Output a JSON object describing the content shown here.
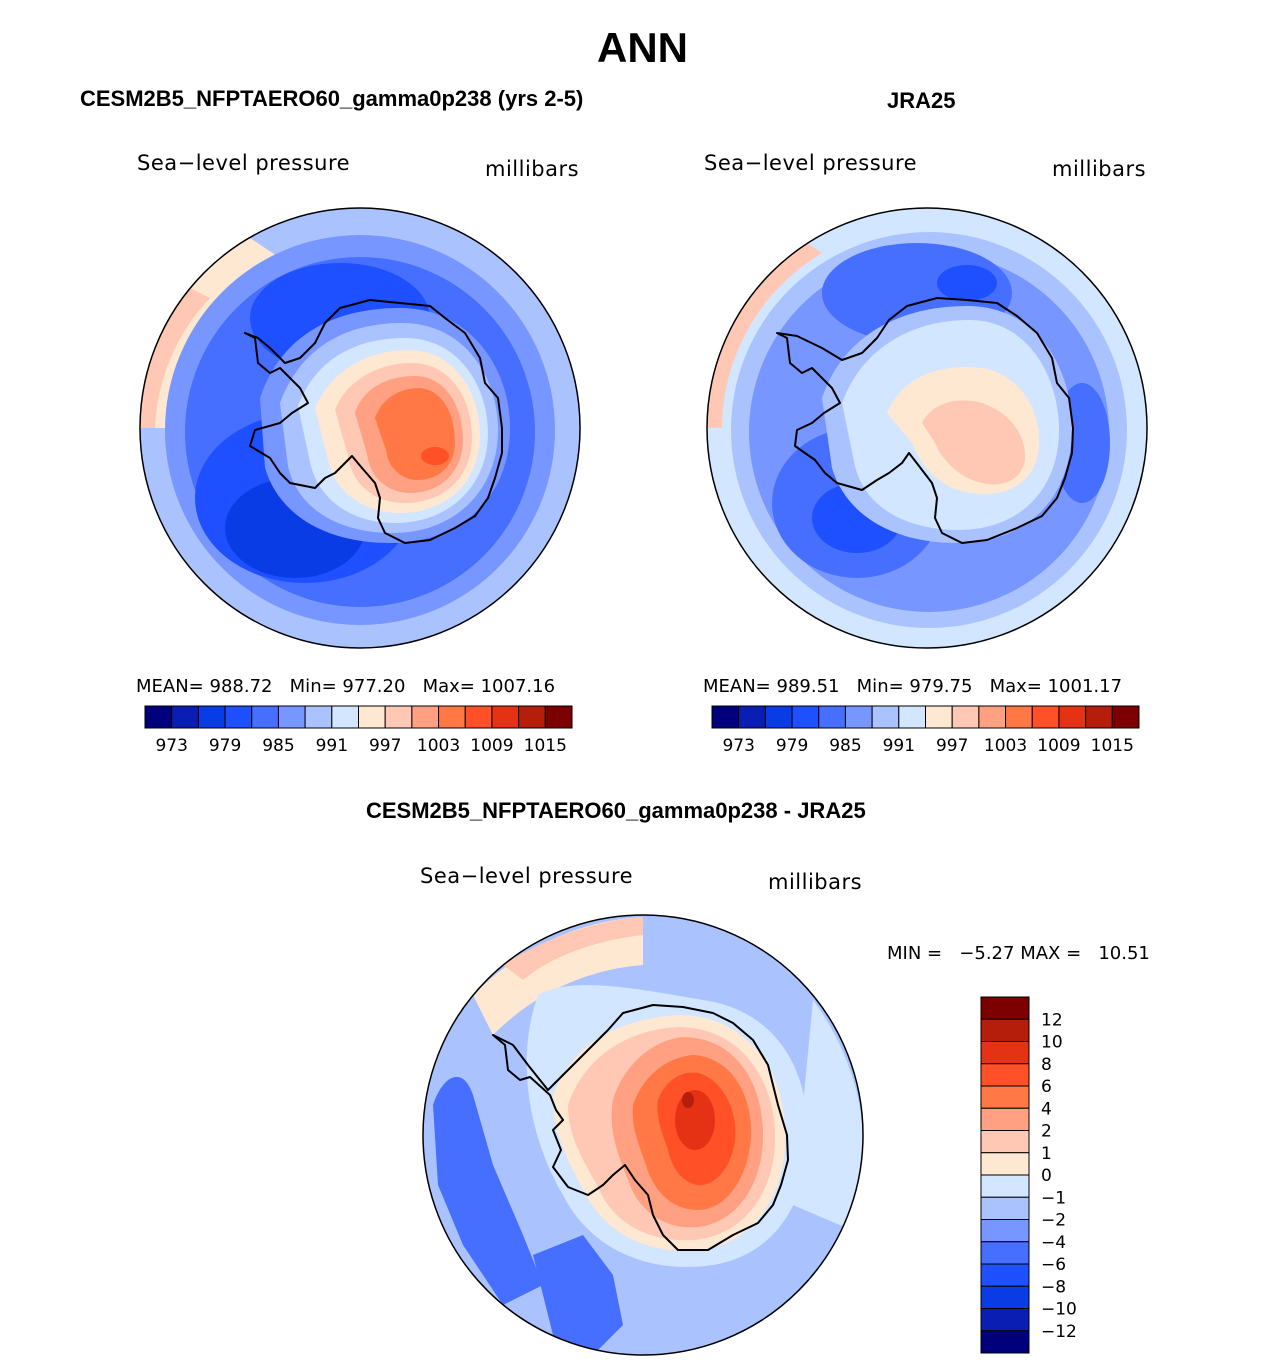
{
  "title": "ANN",
  "panels": {
    "model": {
      "title": "CESM2B5_NFPTAERO60_gamma0p238 (yrs 2-5)",
      "variable": "Sea−level pressure",
      "units": "millibars",
      "mean_label": "MEAN=",
      "mean": "988.72",
      "min_label": "Min=",
      "min": "977.20",
      "max_label": "Max=",
      "max": "1007.16"
    },
    "obs": {
      "title": "JRA25",
      "variable": "Sea−level pressure",
      "units": "millibars",
      "mean_label": "MEAN=",
      "mean": "989.51",
      "min_label": "Min=",
      "min": "979.75",
      "max_label": "Max=",
      "max": "1001.17"
    },
    "diff": {
      "title": "CESM2B5_NFPTAERO60_gamma0p238 - JRA25",
      "variable": "Sea−level pressure",
      "units": "millibars",
      "min_label": "MIN =",
      "min": "−5.27",
      "max_label": "MAX =",
      "max": "10.51"
    }
  },
  "chart_data": [
    {
      "type": "heatmap",
      "projection": "south-polar-stereographic",
      "title": "CESM2B5_NFPTAERO60_gamma0p238 (yrs 2-5)",
      "variable": "Sea-level pressure",
      "units": "millibars",
      "mean": 988.72,
      "min": 977.2,
      "max": 1007.16,
      "colorbar_levels": [
        970,
        973,
        976,
        979,
        982,
        985,
        988,
        991,
        994,
        997,
        1000,
        1003,
        1006,
        1009,
        1012,
        1015,
        1018
      ],
      "colorbar_tick_labels": [
        "973",
        "979",
        "985",
        "991",
        "997",
        "1003",
        "1009",
        "1015"
      ],
      "colorbar_colors": [
        "#00007d",
        "#0a1eb4",
        "#0a3ce6",
        "#1e50ff",
        "#466eff",
        "#7896ff",
        "#aac3ff",
        "#d2e6ff",
        "#ffe8d2",
        "#ffc8b4",
        "#ffa082",
        "#ff7846",
        "#ff5028",
        "#e63214",
        "#b41e0a",
        "#7d0000"
      ]
    },
    {
      "type": "heatmap",
      "projection": "south-polar-stereographic",
      "title": "JRA25",
      "variable": "Sea-level pressure",
      "units": "millibars",
      "mean": 989.51,
      "min": 979.75,
      "max": 1001.17,
      "colorbar_levels": [
        970,
        973,
        976,
        979,
        982,
        985,
        988,
        991,
        994,
        997,
        1000,
        1003,
        1006,
        1009,
        1012,
        1015,
        1018
      ],
      "colorbar_tick_labels": [
        "973",
        "979",
        "985",
        "991",
        "997",
        "1003",
        "1009",
        "1015"
      ],
      "colorbar_colors": [
        "#00007d",
        "#0a1eb4",
        "#0a3ce6",
        "#1e50ff",
        "#466eff",
        "#7896ff",
        "#aac3ff",
        "#d2e6ff",
        "#ffe8d2",
        "#ffc8b4",
        "#ffa082",
        "#ff7846",
        "#ff5028",
        "#e63214",
        "#b41e0a",
        "#7d0000"
      ]
    },
    {
      "type": "heatmap",
      "projection": "south-polar-stereographic",
      "title": "CESM2B5_NFPTAERO60_gamma0p238 - JRA25",
      "variable": "Sea-level pressure",
      "units": "millibars",
      "min": -5.27,
      "max": 10.51,
      "colorbar_tick_labels": [
        "12",
        "10",
        "8",
        "6",
        "4",
        "2",
        "1",
        "0",
        "−1",
        "−2",
        "−4",
        "−6",
        "−8",
        "−10",
        "−12"
      ],
      "colorbar_colors_top_to_bottom": [
        "#7d0000",
        "#b41e0a",
        "#e63214",
        "#ff5028",
        "#ff7846",
        "#ffa082",
        "#ffc8b4",
        "#ffe8d2",
        "#d2e6ff",
        "#aac3ff",
        "#7896ff",
        "#466eff",
        "#1e50ff",
        "#0a3ce6",
        "#0a1eb4",
        "#00007d"
      ]
    }
  ]
}
